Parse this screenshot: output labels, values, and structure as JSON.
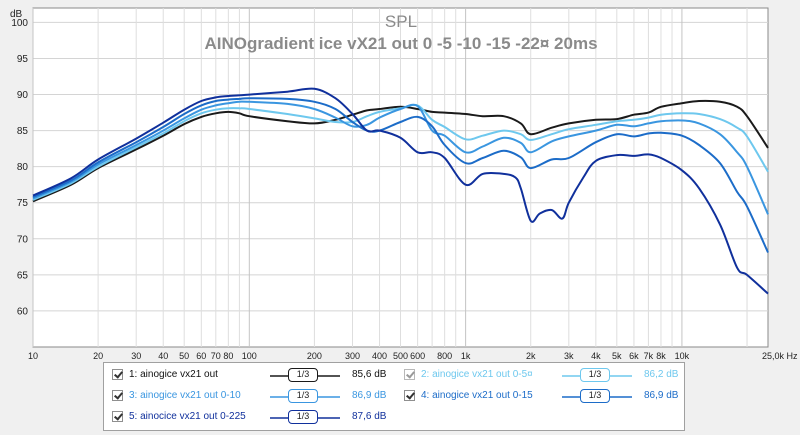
{
  "chart_data": {
    "type": "line",
    "title": "SPL",
    "subtitle": "AINOgradient ice vX21 out 0 -5 -10 -15 -22¤ 20ms",
    "ylabel_unit": "dB",
    "xlabel_unit": "Hz",
    "xscale": "log",
    "xlim": [
      10,
      25000
    ],
    "ylim": [
      55,
      102
    ],
    "grid": true,
    "y_ticks": [
      60,
      65,
      70,
      75,
      80,
      85,
      90,
      95,
      100
    ],
    "x_ticks": [
      {
        "v": 10,
        "label": "10"
      },
      {
        "v": 20,
        "label": "20"
      },
      {
        "v": 30,
        "label": "30"
      },
      {
        "v": 40,
        "label": "40"
      },
      {
        "v": 50,
        "label": "50"
      },
      {
        "v": 60,
        "label": "60"
      },
      {
        "v": 70,
        "label": "70"
      },
      {
        "v": 80,
        "label": "80"
      },
      {
        "v": 100,
        "label": "100"
      },
      {
        "v": 200,
        "label": "200"
      },
      {
        "v": 300,
        "label": "300"
      },
      {
        "v": 400,
        "label": "400"
      },
      {
        "v": 500,
        "label": "500"
      },
      {
        "v": 600,
        "label": "600"
      },
      {
        "v": 800,
        "label": "800"
      },
      {
        "v": 1000,
        "label": "1k"
      },
      {
        "v": 2000,
        "label": "2k"
      },
      {
        "v": 3000,
        "label": "3k"
      },
      {
        "v": 4000,
        "label": "4k"
      },
      {
        "v": 5000,
        "label": "5k"
      },
      {
        "v": 6000,
        "label": "6k"
      },
      {
        "v": 7000,
        "label": "7k"
      },
      {
        "v": 8000,
        "label": "8k"
      },
      {
        "v": 10000,
        "label": "10k"
      },
      {
        "v": 25000,
        "label": "25,0k Hz"
      }
    ],
    "series": [
      {
        "name": "1: ainogice vx21 out",
        "value": "85,6 dB",
        "color": "#1a1a1a",
        "dim": false,
        "x": [
          10,
          15,
          20,
          30,
          40,
          50,
          60,
          70,
          80,
          90,
          100,
          150,
          200,
          250,
          300,
          350,
          400,
          500,
          600,
          700,
          800,
          1000,
          1200,
          1500,
          1800,
          2000,
          2500,
          3000,
          4000,
          5000,
          6000,
          7000,
          8000,
          10000,
          12000,
          15000,
          18000,
          20000,
          25000
        ],
        "y": [
          75.2,
          77.5,
          79.8,
          82.4,
          84.3,
          85.9,
          86.9,
          87.4,
          87.6,
          87.4,
          87.0,
          86.3,
          86.0,
          86.5,
          87.2,
          87.8,
          88.0,
          88.3,
          88.0,
          87.6,
          87.5,
          87.3,
          87.0,
          87.0,
          86.0,
          84.5,
          85.4,
          86.0,
          86.5,
          86.6,
          87.2,
          87.5,
          88.3,
          88.8,
          89.1,
          89.0,
          88.3,
          87.0,
          82.6
        ]
      },
      {
        "name": "2: ainogice vx21 out 0-5¤",
        "value": "86,2 dB",
        "color": "#6ec8ee",
        "dim": true,
        "x": [
          10,
          15,
          20,
          30,
          40,
          50,
          60,
          70,
          80,
          90,
          100,
          150,
          200,
          250,
          300,
          350,
          400,
          500,
          600,
          700,
          800,
          1000,
          1200,
          1500,
          1800,
          2000,
          2500,
          3000,
          4000,
          5000,
          6000,
          7000,
          8000,
          10000,
          12000,
          15000,
          18000,
          20000,
          25000
        ],
        "y": [
          75.4,
          77.7,
          80.0,
          82.7,
          84.6,
          86.3,
          87.4,
          87.9,
          88.1,
          88.1,
          88.0,
          87.3,
          86.7,
          86.2,
          86.2,
          87.0,
          87.6,
          88.1,
          88.5,
          86.5,
          85.5,
          83.8,
          84.3,
          85.0,
          84.5,
          83.7,
          84.5,
          85.2,
          85.8,
          86.3,
          86.5,
          86.8,
          87.2,
          87.4,
          87.3,
          86.6,
          85.4,
          84.2,
          79.3
        ]
      },
      {
        "name": "3: ainogice vx21 out 0-10",
        "value": "86,9 dB",
        "color": "#3a96e0",
        "dim": false,
        "x": [
          10,
          15,
          20,
          30,
          40,
          50,
          60,
          70,
          80,
          90,
          100,
          150,
          200,
          250,
          300,
          350,
          400,
          500,
          600,
          700,
          800,
          1000,
          1200,
          1500,
          1800,
          2000,
          2500,
          3000,
          4000,
          5000,
          6000,
          7000,
          8000,
          10000,
          12000,
          15000,
          18000,
          20000,
          25000
        ],
        "y": [
          75.6,
          77.9,
          80.3,
          83.0,
          85.0,
          86.7,
          87.9,
          88.5,
          88.8,
          89.0,
          89.0,
          88.7,
          88.0,
          86.8,
          85.6,
          85.8,
          86.8,
          88.0,
          88.4,
          85.0,
          84.3,
          82.0,
          82.8,
          84.0,
          83.3,
          82.0,
          83.5,
          84.2,
          85.0,
          85.8,
          85.6,
          86.0,
          86.3,
          86.4,
          86.0,
          84.5,
          82.0,
          80.0,
          73.4
        ]
      },
      {
        "name": "4: ainogice vx21 out 0-15",
        "value": "86,9 dB",
        "color": "#1c6cc8",
        "dim": false,
        "x": [
          10,
          15,
          20,
          30,
          40,
          50,
          60,
          70,
          80,
          90,
          100,
          150,
          200,
          250,
          300,
          350,
          400,
          500,
          600,
          700,
          800,
          1000,
          1200,
          1500,
          1800,
          2000,
          2500,
          3000,
          4000,
          5000,
          6000,
          7000,
          8000,
          10000,
          12000,
          15000,
          18000,
          20000,
          25000
        ],
        "y": [
          75.8,
          78.1,
          80.6,
          83.4,
          85.5,
          87.3,
          88.5,
          89.1,
          89.3,
          89.4,
          89.5,
          89.4,
          89.0,
          88.0,
          86.2,
          85.0,
          85.0,
          86.2,
          86.9,
          85.6,
          83.0,
          80.5,
          81.2,
          82.2,
          81.3,
          79.8,
          81.0,
          81.2,
          83.4,
          84.5,
          84.2,
          84.6,
          84.7,
          84.3,
          83.0,
          80.5,
          76.5,
          74.5,
          68.1
        ]
      },
      {
        "name": "5: ainocice vx21 out 0-225",
        "value": "87,6 dB",
        "color": "#10309c",
        "dim": false,
        "x": [
          10,
          15,
          20,
          30,
          40,
          50,
          60,
          70,
          80,
          90,
          100,
          150,
          200,
          250,
          300,
          350,
          400,
          500,
          600,
          700,
          800,
          1000,
          1200,
          1500,
          1700,
          1800,
          2000,
          2200,
          2500,
          2800,
          3000,
          3500,
          4000,
          5000,
          6000,
          7000,
          8000,
          10000,
          12000,
          15000,
          18000,
          20000,
          25000
        ],
        "y": [
          76.0,
          78.4,
          81.0,
          83.9,
          86.1,
          87.9,
          89.1,
          89.6,
          89.8,
          89.9,
          90.0,
          90.4,
          90.8,
          89.5,
          87.3,
          85.0,
          85.0,
          84.0,
          82.0,
          82.0,
          81.2,
          77.5,
          79.0,
          79.0,
          78.5,
          77.0,
          72.5,
          73.5,
          74.0,
          72.8,
          75.0,
          78.5,
          80.8,
          81.6,
          81.5,
          81.7,
          81.2,
          79.5,
          77.0,
          72.0,
          66.0,
          65.0,
          62.4
        ]
      }
    ]
  },
  "legend": {
    "smoothing_label": "1/3",
    "items": [
      {
        "name": "1: ainogice vx21 out",
        "value": "85,6 dB",
        "color": "#1a1a1a",
        "dim": false
      },
      {
        "name": "2: ainogice vx21 out 0-5¤",
        "value": "86,2 dB",
        "color": "#6ec8ee",
        "dim": true
      },
      {
        "name": "3: ainogice vx21 out 0-10",
        "value": "86,9 dB",
        "color": "#3a96e0",
        "dim": false
      },
      {
        "name": "4: ainogice vx21 out 0-15",
        "value": "86,9 dB",
        "color": "#1c6cc8",
        "dim": false
      },
      {
        "name": "5: ainocice vx21 out 0-225",
        "value": "87,6 dB",
        "color": "#10309c",
        "dim": false
      }
    ]
  }
}
